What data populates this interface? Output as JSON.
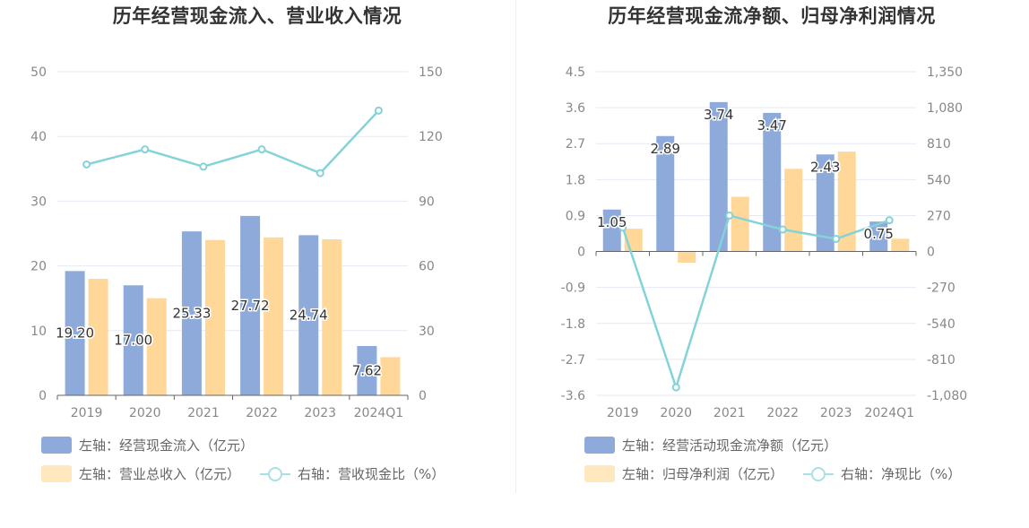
{
  "chart_data": [
    {
      "type": "bar",
      "title": "历年经营现金流入、营业收入情况",
      "categories": [
        "2019",
        "2020",
        "2021",
        "2022",
        "2023",
        "2024Q1"
      ],
      "left_axis": {
        "ylim": [
          0,
          50
        ],
        "ticks": [
          "0",
          "10",
          "20",
          "30",
          "40",
          "50"
        ],
        "values": [
          0,
          10,
          20,
          30,
          40,
          50
        ]
      },
      "right_axis": {
        "ylim": [
          0,
          150
        ],
        "ticks": [
          "0",
          "30",
          "60",
          "90",
          "120",
          "150"
        ],
        "values": [
          0,
          30,
          60,
          90,
          120,
          150
        ]
      },
      "series": [
        {
          "name": "左轴：经营现金流入（亿元）",
          "type": "bar",
          "axis": "left",
          "color": "#8eaadb",
          "values": [
            19.2,
            17.0,
            25.33,
            27.72,
            24.74,
            7.62
          ],
          "labels": [
            "19.20",
            "17.00",
            "25.33",
            "27.72",
            "24.74",
            "7.62"
          ]
        },
        {
          "name": "左轴：营业总收入（亿元）",
          "type": "bar",
          "axis": "left",
          "color": "#ffd899",
          "values": [
            18.0,
            15.0,
            24.0,
            24.4,
            24.1,
            5.9
          ]
        },
        {
          "name": "右轴：营收现金比（%）",
          "type": "line",
          "axis": "right",
          "color": "#84d3d8",
          "values": [
            107,
            114,
            106,
            114,
            103,
            132
          ]
        }
      ],
      "grid": true
    },
    {
      "type": "bar",
      "title": "历年经营现金流净额、归母净利润情况",
      "categories": [
        "2019",
        "2020",
        "2021",
        "2022",
        "2023",
        "2024Q1"
      ],
      "left_axis": {
        "ylim": [
          -3.6,
          4.5
        ],
        "ticks": [
          "-3.6",
          "-2.7",
          "-1.8",
          "-0.9",
          "0",
          "0.9",
          "1.8",
          "2.7",
          "3.6",
          "4.5"
        ],
        "values": [
          -3.6,
          -2.7,
          -1.8,
          -0.9,
          0,
          0.9,
          1.8,
          2.7,
          3.6,
          4.5
        ]
      },
      "right_axis": {
        "ylim": [
          -1080,
          1350
        ],
        "ticks": [
          "-1,080",
          "-810",
          "-540",
          "-270",
          "0",
          "270",
          "540",
          "810",
          "1,080",
          "1,350"
        ],
        "values": [
          -1080,
          -810,
          -540,
          -270,
          0,
          270,
          540,
          810,
          1080,
          1350
        ]
      },
      "series": [
        {
          "name": "左轴：经营活动现金流净额（亿元）",
          "type": "bar",
          "axis": "left",
          "color": "#8eaadb",
          "values": [
            1.05,
            2.89,
            3.74,
            3.47,
            2.43,
            0.75
          ],
          "labels": [
            "1.05",
            "2.89",
            "3.74",
            "3.47",
            "2.43",
            "0.75"
          ]
        },
        {
          "name": "左轴：归母净利润（亿元）",
          "type": "bar",
          "axis": "left",
          "color": "#ffd899",
          "values": [
            0.57,
            -0.28,
            1.37,
            2.07,
            2.5,
            0.32
          ]
        },
        {
          "name": "右轴：净现比（%）",
          "type": "line",
          "axis": "right",
          "color": "#84d3d8",
          "values": [
            180,
            -1020,
            270,
            165,
            95,
            235
          ]
        }
      ],
      "grid": true
    }
  ]
}
